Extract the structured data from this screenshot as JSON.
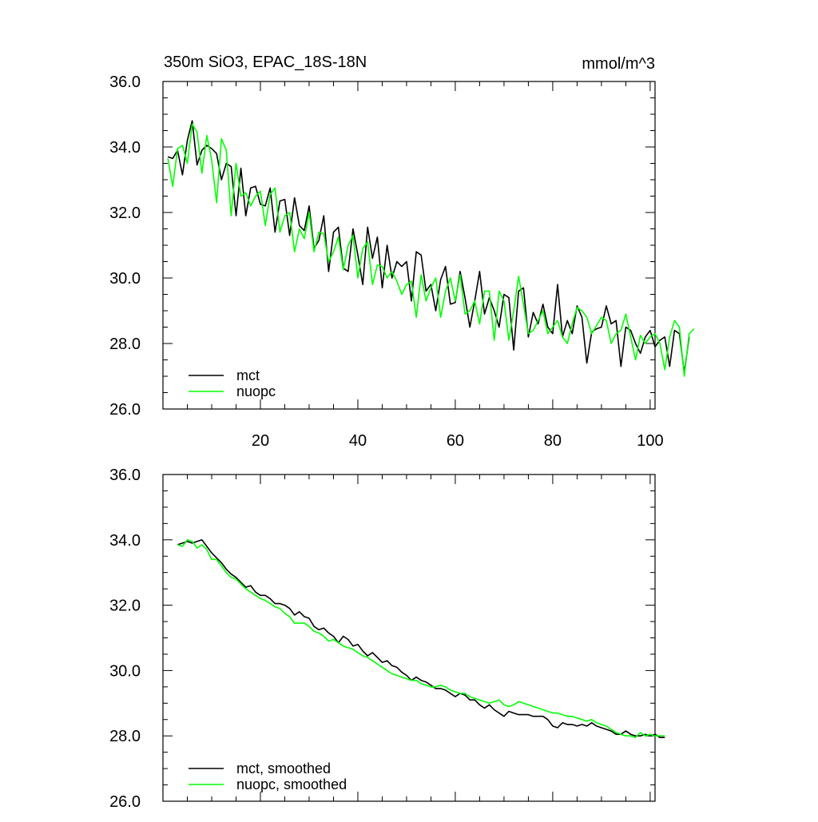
{
  "chart_data": [
    {
      "type": "line",
      "title": "350m SiO3, EPAC_18S-18N",
      "units": "mmol/m^3",
      "xlabel": "",
      "ylabel": "",
      "xlim": [
        0,
        101
      ],
      "ylim": [
        26.0,
        36.0
      ],
      "x_start": 1,
      "xticks": [
        "20",
        "40",
        "60",
        "80",
        "100"
      ],
      "yticks": [
        "26.0",
        "28.0",
        "30.0",
        "32.0",
        "34.0",
        "36.0"
      ],
      "legend_position": "bottom-left",
      "series": [
        {
          "name": "mct",
          "color": "#000000",
          "values": [
            33.7,
            33.65,
            33.9,
            33.15,
            34.2,
            34.8,
            33.45,
            33.9,
            34.05,
            33.95,
            33.8,
            33.0,
            33.5,
            33.4,
            31.9,
            33.35,
            31.9,
            32.75,
            32.8,
            32.25,
            32.2,
            32.75,
            31.4,
            32.35,
            32.4,
            31.3,
            32.45,
            31.6,
            31.45,
            32.2,
            30.9,
            31.15,
            31.9,
            30.2,
            31.4,
            31.55,
            30.3,
            30.2,
            31.5,
            30.7,
            29.8,
            31.55,
            30.6,
            31.25,
            29.7,
            31.0,
            30.0,
            30.5,
            30.35,
            30.5,
            29.3,
            30.8,
            30.7,
            29.6,
            29.8,
            29.0,
            29.95,
            30.35,
            29.2,
            29.25,
            30.2,
            29.4,
            28.5,
            29.3,
            30.2,
            28.9,
            29.4,
            29.0,
            28.5,
            29.5,
            29.4,
            27.8,
            29.6,
            29.7,
            28.2,
            28.95,
            28.6,
            29.2,
            28.5,
            28.3,
            29.8,
            28.2,
            28.7,
            28.3,
            29.15,
            28.8,
            27.4,
            28.35,
            28.45,
            28.5,
            29.15,
            28.6,
            28.7,
            27.3,
            28.5,
            28.4,
            28.0,
            27.7,
            28.2,
            28.4,
            27.9
          ],
          "tail_values": [
            28.1,
            28.2,
            27.3,
            28.4,
            28.3,
            27.1,
            28.2
          ]
        },
        {
          "name": "nuopc",
          "color": "#00ff00",
          "values": [
            33.65,
            32.8,
            33.95,
            34.05,
            33.5,
            34.7,
            34.45,
            33.2,
            34.35,
            33.6,
            32.3,
            34.25,
            33.9,
            31.9,
            33.5,
            32.5,
            32.6,
            32.2,
            32.5,
            32.65,
            31.6,
            32.55,
            32.75,
            31.4,
            31.9,
            32.0,
            30.8,
            31.5,
            31.2,
            32.0,
            30.8,
            31.4,
            31.35,
            30.5,
            30.8,
            31.25,
            30.25,
            31.0,
            31.3,
            30.0,
            30.9,
            31.1,
            29.8,
            30.4,
            30.35,
            30.0,
            30.2,
            29.9,
            29.5,
            29.8,
            29.9,
            28.8,
            30.1,
            29.3,
            29.7,
            30.0,
            28.8,
            29.6,
            30.0,
            29.3,
            30.1,
            28.9,
            29.0,
            29.3,
            28.6,
            29.6,
            29.6,
            28.1,
            29.6,
            29.3,
            28.1,
            29.0,
            30.05,
            29.2,
            28.3,
            28.4,
            28.7,
            29.0,
            28.3,
            28.5,
            28.7,
            28.2,
            28.0,
            28.6,
            29.1,
            29.0,
            28.8,
            28.3,
            28.55,
            28.8,
            28.7,
            28.0,
            28.3,
            28.4,
            28.9,
            28.2,
            27.5,
            28.25,
            28.0,
            28.2,
            28.3
          ],
          "tail_values": [
            28.0,
            27.2,
            28.2,
            28.7,
            28.5,
            27.0,
            28.3,
            28.45
          ]
        }
      ]
    },
    {
      "type": "line",
      "title": "",
      "xlabel": "",
      "ylabel": "",
      "xlim": [
        0,
        101
      ],
      "ylim": [
        26.0,
        36.0
      ],
      "x_start": 3,
      "yticks": [
        "26.0",
        "28.0",
        "30.0",
        "32.0",
        "34.0",
        "36.0"
      ],
      "legend_position": "bottom-left",
      "series": [
        {
          "name": "mct, smoothed",
          "color": "#000000",
          "values": [
            33.85,
            33.9,
            33.95,
            33.9,
            33.95,
            34.0,
            33.8,
            33.6,
            33.45,
            33.3,
            33.1,
            32.95,
            32.85,
            32.7,
            32.55,
            32.6,
            32.4,
            32.3,
            32.3,
            32.2,
            32.05,
            32.05,
            32.0,
            31.9,
            31.7,
            31.8,
            31.65,
            31.6,
            31.35,
            31.25,
            31.3,
            31.15,
            31.05,
            30.85,
            31.05,
            30.95,
            30.75,
            30.8,
            30.6,
            30.45,
            30.55,
            30.4,
            30.25,
            30.3,
            30.15,
            30.1,
            29.95,
            29.85,
            29.7,
            29.8,
            29.7,
            29.65,
            29.55,
            29.45,
            29.45,
            29.4,
            29.3,
            29.2,
            29.3,
            29.25,
            29.1,
            29.1,
            28.95,
            28.85,
            28.95,
            28.8,
            28.7,
            28.6,
            28.75,
            28.7,
            28.65,
            28.65,
            28.65,
            28.6,
            28.6,
            28.6,
            28.5,
            28.3,
            28.25,
            28.4,
            28.35,
            28.35,
            28.3,
            28.35,
            28.3,
            28.4,
            28.3,
            28.25,
            28.2,
            28.15,
            28.05,
            28.05,
            28.15,
            28.05,
            28.0,
            28.0,
            28.05,
            28.0,
            28.05,
            27.95,
            27.95
          ],
          "tail_values": []
        },
        {
          "name": "nuopc, smoothed",
          "color": "#00ff00",
          "values": [
            33.85,
            33.8,
            34.0,
            33.95,
            33.75,
            33.85,
            33.7,
            33.4,
            33.4,
            33.2,
            33.0,
            32.85,
            32.8,
            32.65,
            32.5,
            32.4,
            32.3,
            32.2,
            32.15,
            32.05,
            31.95,
            31.9,
            31.75,
            31.65,
            31.45,
            31.45,
            31.45,
            31.35,
            31.2,
            31.15,
            31.05,
            30.9,
            30.95,
            30.85,
            30.75,
            30.7,
            30.65,
            30.55,
            30.45,
            30.4,
            30.3,
            30.2,
            30.1,
            30.0,
            29.9,
            29.85,
            29.8,
            29.75,
            29.7,
            29.7,
            29.6,
            29.55,
            29.5,
            29.5,
            29.55,
            29.5,
            29.4,
            29.35,
            29.3,
            29.3,
            29.2,
            29.15,
            29.1,
            29.05,
            29.0,
            29.05,
            29.1,
            28.95,
            28.9,
            28.95,
            29.05,
            29.0,
            28.95,
            28.9,
            28.85,
            28.8,
            28.75,
            28.7,
            28.7,
            28.65,
            28.6,
            28.6,
            28.55,
            28.5,
            28.45,
            28.5,
            28.4,
            28.35,
            28.3,
            28.2,
            28.1,
            28.05,
            28.0,
            28.0,
            27.95,
            28.1,
            28.0,
            28.05,
            28.0,
            28.0,
            28.0
          ],
          "tail_values": []
        }
      ]
    }
  ]
}
